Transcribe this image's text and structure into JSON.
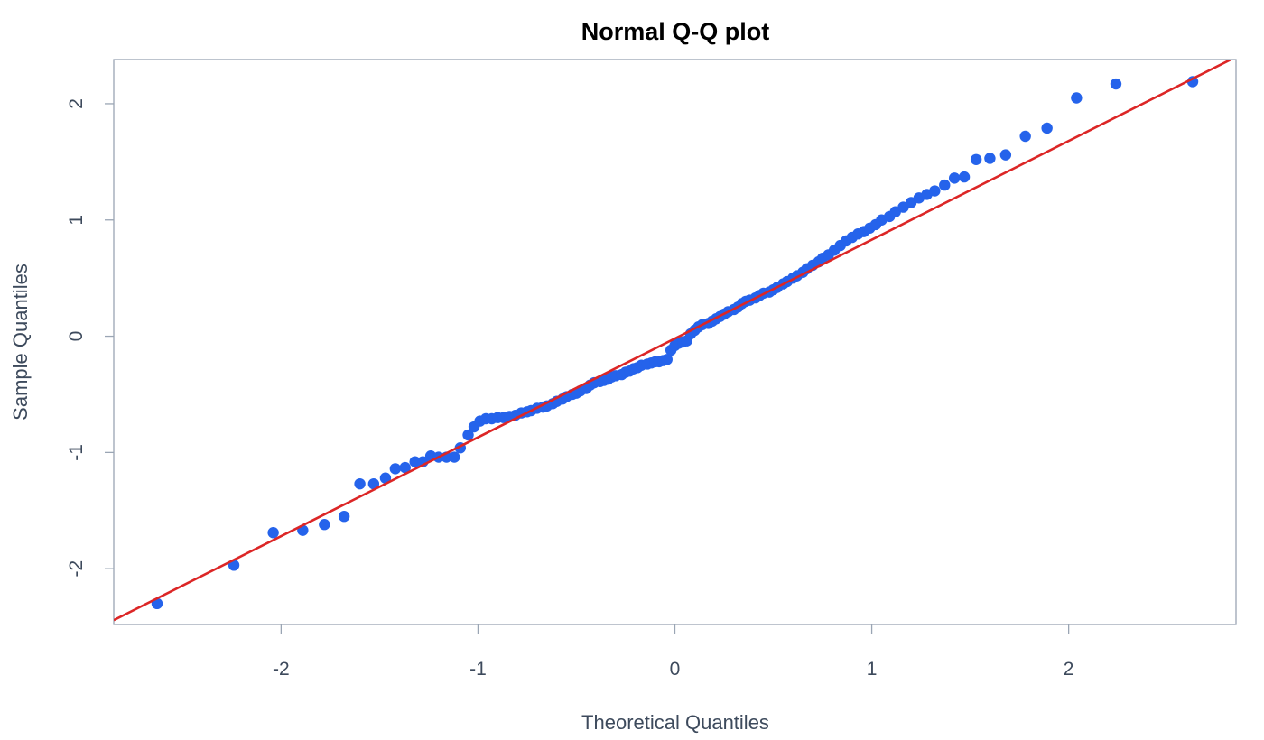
{
  "chart_data": {
    "type": "scatter",
    "title": "Normal Q-Q plot",
    "xlabel": "Theoretical Quantiles",
    "ylabel": "Sample Quantiles",
    "xlim": [
      -2.85,
      2.85
    ],
    "ylim": [
      -2.48,
      2.38
    ],
    "x_ticks": [
      -2,
      -1,
      0,
      1,
      2
    ],
    "y_ticks": [
      -2,
      -1,
      0,
      1,
      2
    ],
    "x_tick_labels": [
      "-2",
      "-1",
      "0",
      "1",
      "2"
    ],
    "y_tick_labels": [
      "-2",
      "-1",
      "0",
      "1",
      "2"
    ],
    "grid": false,
    "colors": {
      "points": "#2563eb",
      "reference_line": "#dc2626"
    },
    "reference_line": {
      "slope": 0.85,
      "intercept": -0.02
    },
    "series": [
      {
        "points": [
          [
            -2.63,
            -2.3
          ],
          [
            -2.24,
            -1.97
          ],
          [
            -2.04,
            -1.69
          ],
          [
            -1.89,
            -1.67
          ],
          [
            -1.78,
            -1.62
          ],
          [
            -1.68,
            -1.55
          ],
          [
            -1.6,
            -1.27
          ],
          [
            -1.53,
            -1.27
          ],
          [
            -1.47,
            -1.22
          ],
          [
            -1.42,
            -1.14
          ],
          [
            -1.37,
            -1.13
          ],
          [
            -1.32,
            -1.08
          ],
          [
            -1.28,
            -1.08
          ],
          [
            -1.24,
            -1.03
          ],
          [
            -1.2,
            -1.04
          ],
          [
            -1.16,
            -1.04
          ],
          [
            -1.12,
            -1.04
          ],
          [
            -1.09,
            -0.96
          ],
          [
            -1.05,
            -0.85
          ],
          [
            -1.02,
            -0.78
          ],
          [
            -0.99,
            -0.73
          ],
          [
            -0.96,
            -0.71
          ],
          [
            -0.93,
            -0.71
          ],
          [
            -0.9,
            -0.7
          ],
          [
            -0.87,
            -0.7
          ],
          [
            -0.84,
            -0.69
          ],
          [
            -0.81,
            -0.68
          ],
          [
            -0.78,
            -0.66
          ],
          [
            -0.75,
            -0.65
          ],
          [
            -0.73,
            -0.64
          ],
          [
            -0.7,
            -0.62
          ],
          [
            -0.67,
            -0.61
          ],
          [
            -0.65,
            -0.6
          ],
          [
            -0.62,
            -0.58
          ],
          [
            -0.6,
            -0.56
          ],
          [
            -0.57,
            -0.54
          ],
          [
            -0.55,
            -0.52
          ],
          [
            -0.52,
            -0.5
          ],
          [
            -0.5,
            -0.49
          ],
          [
            -0.48,
            -0.47
          ],
          [
            -0.45,
            -0.45
          ],
          [
            -0.43,
            -0.42
          ],
          [
            -0.41,
            -0.4
          ],
          [
            -0.38,
            -0.39
          ],
          [
            -0.36,
            -0.38
          ],
          [
            -0.34,
            -0.37
          ],
          [
            -0.32,
            -0.35
          ],
          [
            -0.3,
            -0.34
          ],
          [
            -0.27,
            -0.33
          ],
          [
            -0.25,
            -0.31
          ],
          [
            -0.23,
            -0.3
          ],
          [
            -0.21,
            -0.28
          ],
          [
            -0.19,
            -0.27
          ],
          [
            -0.17,
            -0.25
          ],
          [
            -0.14,
            -0.24
          ],
          [
            -0.12,
            -0.23
          ],
          [
            -0.1,
            -0.22
          ],
          [
            -0.08,
            -0.22
          ],
          [
            -0.06,
            -0.21
          ],
          [
            -0.04,
            -0.2
          ],
          [
            -0.02,
            -0.12
          ],
          [
            0.0,
            -0.08
          ],
          [
            0.02,
            -0.06
          ],
          [
            0.04,
            -0.05
          ],
          [
            0.06,
            -0.04
          ],
          [
            0.08,
            0.02
          ],
          [
            0.1,
            0.05
          ],
          [
            0.12,
            0.08
          ],
          [
            0.14,
            0.1
          ],
          [
            0.17,
            0.11
          ],
          [
            0.19,
            0.13
          ],
          [
            0.21,
            0.15
          ],
          [
            0.23,
            0.17
          ],
          [
            0.25,
            0.19
          ],
          [
            0.27,
            0.21
          ],
          [
            0.3,
            0.23
          ],
          [
            0.32,
            0.25
          ],
          [
            0.34,
            0.28
          ],
          [
            0.36,
            0.3
          ],
          [
            0.38,
            0.31
          ],
          [
            0.41,
            0.33
          ],
          [
            0.43,
            0.35
          ],
          [
            0.45,
            0.37
          ],
          [
            0.48,
            0.38
          ],
          [
            0.5,
            0.4
          ],
          [
            0.52,
            0.42
          ],
          [
            0.55,
            0.45
          ],
          [
            0.57,
            0.47
          ],
          [
            0.6,
            0.5
          ],
          [
            0.62,
            0.52
          ],
          [
            0.65,
            0.55
          ],
          [
            0.67,
            0.58
          ],
          [
            0.7,
            0.61
          ],
          [
            0.73,
            0.64
          ],
          [
            0.75,
            0.67
          ],
          [
            0.78,
            0.7
          ],
          [
            0.81,
            0.74
          ],
          [
            0.84,
            0.78
          ],
          [
            0.87,
            0.82
          ],
          [
            0.9,
            0.85
          ],
          [
            0.93,
            0.88
          ],
          [
            0.96,
            0.9
          ],
          [
            0.99,
            0.93
          ],
          [
            1.02,
            0.96
          ],
          [
            1.05,
            1.0
          ],
          [
            1.09,
            1.03
          ],
          [
            1.12,
            1.07
          ],
          [
            1.16,
            1.11
          ],
          [
            1.2,
            1.15
          ],
          [
            1.24,
            1.19
          ],
          [
            1.28,
            1.22
          ],
          [
            1.32,
            1.25
          ],
          [
            1.37,
            1.3
          ],
          [
            1.42,
            1.36
          ],
          [
            1.47,
            1.37
          ],
          [
            1.53,
            1.52
          ],
          [
            1.6,
            1.53
          ],
          [
            1.68,
            1.56
          ],
          [
            1.78,
            1.72
          ],
          [
            1.89,
            1.79
          ],
          [
            2.04,
            2.05
          ],
          [
            2.24,
            2.17
          ],
          [
            2.63,
            2.19
          ]
        ]
      }
    ]
  }
}
